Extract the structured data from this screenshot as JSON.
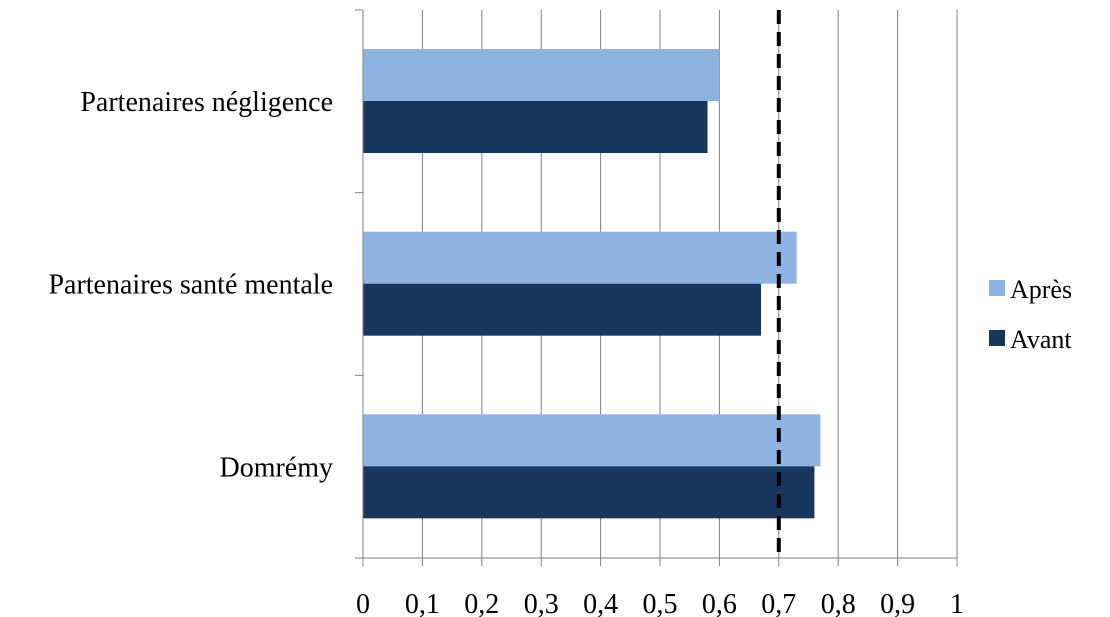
{
  "chart_data": {
    "type": "bar",
    "orientation": "horizontal",
    "categories": [
      "Partenaires négligence",
      "Partenaires santé mentale",
      "Domrémy"
    ],
    "series": [
      {
        "name": "Après",
        "color": "#8DB3E2",
        "values": [
          0.6,
          0.73,
          0.77
        ]
      },
      {
        "name": "Avant",
        "color": "#17375E",
        "values": [
          0.58,
          0.67,
          0.76
        ]
      }
    ],
    "xlim": [
      0,
      1
    ],
    "x_ticks": [
      0,
      0.1,
      0.2,
      0.3,
      0.4,
      0.5,
      0.6,
      0.7,
      0.8,
      0.9,
      1
    ],
    "x_tick_labels": [
      "0",
      "0,1",
      "0,2",
      "0,3",
      "0,4",
      "0,5",
      "0,6",
      "0,7",
      "0,8",
      "0,9",
      "1"
    ],
    "reference_line": {
      "value": 0.7,
      "style": "dashed",
      "color": "#000000"
    },
    "grid": true,
    "legend_position": "right",
    "title": "",
    "xlabel": "",
    "ylabel": ""
  }
}
